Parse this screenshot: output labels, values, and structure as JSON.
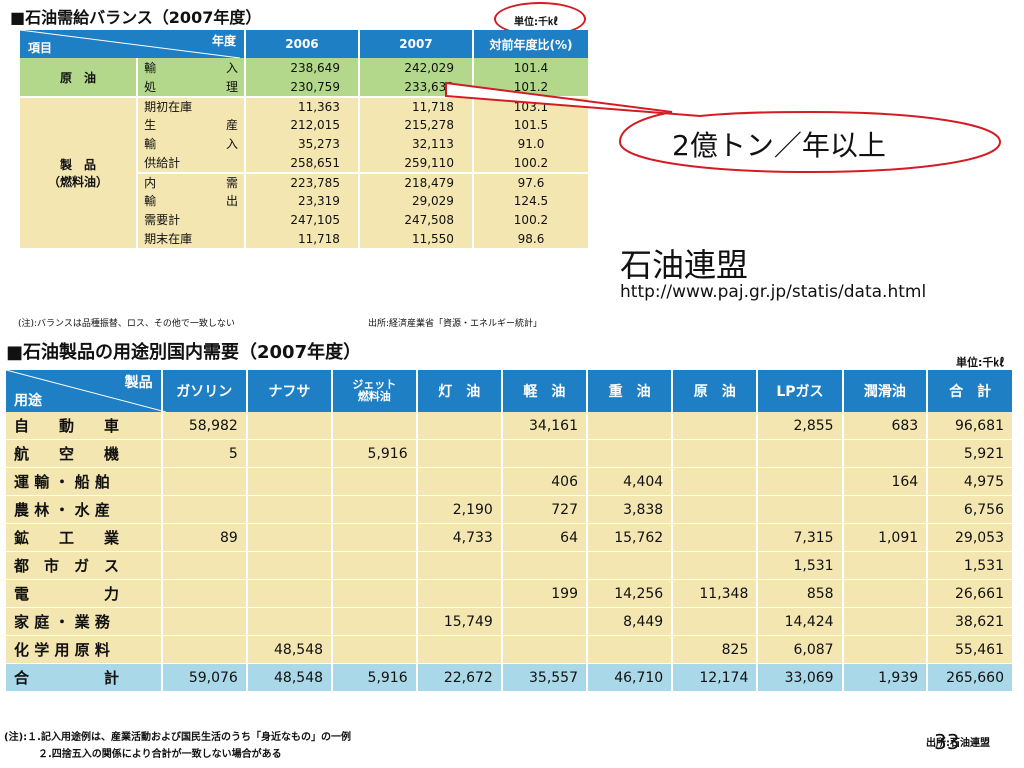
{
  "table1": {
    "title": "■石油需給バランス（2007年度）",
    "unit": "単位:千㎘",
    "corner_top": "年度",
    "corner_bottom": "項目",
    "col_2006": "2006",
    "col_2007": "2007",
    "col_ratio": "対前年度比(%)",
    "group_crude": "原　油",
    "group_products_1": "製　品",
    "group_products_2": "（燃料油）",
    "rows": [
      {
        "l1": "輸",
        "l2": "入",
        "v2006": "238,649",
        "v2007": "242,029",
        "ratio": "101.4"
      },
      {
        "l1": "処",
        "l2": "理",
        "v2006": "230,759",
        "v2007": "233,633",
        "ratio": "101.2"
      },
      {
        "l1": "期初在庫",
        "l2": "",
        "v2006": "11,363",
        "v2007": "11,718",
        "ratio": "103.1"
      },
      {
        "l1": "生",
        "l2": "産",
        "v2006": "212,015",
        "v2007": "215,278",
        "ratio": "101.5"
      },
      {
        "l1": "輸",
        "l2": "入",
        "v2006": "35,273",
        "v2007": "32,113",
        "ratio": "91.0"
      },
      {
        "l1": "供給計",
        "l2": "",
        "v2006": "258,651",
        "v2007": "259,110",
        "ratio": "100.2"
      },
      {
        "l1": "内",
        "l2": "需",
        "v2006": "223,785",
        "v2007": "218,479",
        "ratio": "97.6"
      },
      {
        "l1": "輸",
        "l2": "出",
        "v2006": "23,319",
        "v2007": "29,029",
        "ratio": "124.5"
      },
      {
        "l1": "需要計",
        "l2": "",
        "v2006": "247,105",
        "v2007": "247,508",
        "ratio": "100.2"
      },
      {
        "l1": "期末在庫",
        "l2": "",
        "v2006": "11,718",
        "v2007": "11,550",
        "ratio": "98.6"
      }
    ],
    "note": "(注):バランスは品種振替、ロス、その他で一致しない",
    "source": "出所:経済産業省「資源・エネルギー統計」"
  },
  "callout": {
    "text": "2億トン／年以上",
    "colors": {
      "stroke": "#d41c24"
    }
  },
  "org": {
    "name": "石油連盟",
    "url": "http://www.paj.gr.jp/statis/data.html"
  },
  "table2": {
    "title": "■石油製品の用途別国内需要（2007年度）",
    "unit": "単位:千㎘",
    "corner_top": "製品",
    "corner_bottom": "用途",
    "columns": [
      "ガソリン",
      "ナフサ",
      "ジェット燃料油",
      "灯　油",
      "軽　油",
      "重　油",
      "原　油",
      "LPガス",
      "潤滑油",
      "合　計"
    ],
    "jet_line1": "ジェット",
    "jet_line2": "燃料油",
    "rows": [
      {
        "label": "自　　動　　車",
        "values": [
          "58,982",
          "",
          "",
          "",
          "34,161",
          "",
          "",
          "2,855",
          "683",
          "96,681"
        ]
      },
      {
        "label": "航　　空　　機",
        "values": [
          "5",
          "",
          "5,916",
          "",
          "",
          "",
          "",
          "",
          "",
          "5,921"
        ]
      },
      {
        "label": "運 輸 ・ 船 舶",
        "values": [
          "",
          "",
          "",
          "",
          "406",
          "4,404",
          "",
          "",
          "164",
          "4,975"
        ]
      },
      {
        "label": "農 林 ・ 水 産",
        "values": [
          "",
          "",
          "",
          "2,190",
          "727",
          "3,838",
          "",
          "",
          "",
          "6,756"
        ]
      },
      {
        "label": "鉱　　工　　業",
        "values": [
          "89",
          "",
          "",
          "4,733",
          "64",
          "15,762",
          "",
          "7,315",
          "1,091",
          "29,053"
        ]
      },
      {
        "label": "都　市　ガ　ス",
        "values": [
          "",
          "",
          "",
          "",
          "",
          "",
          "",
          "1,531",
          "",
          "1,531"
        ]
      },
      {
        "label": "電　　　　　力",
        "values": [
          "",
          "",
          "",
          "",
          "199",
          "14,256",
          "11,348",
          "858",
          "",
          "26,661"
        ]
      },
      {
        "label": "家 庭 ・ 業 務",
        "values": [
          "",
          "",
          "",
          "15,749",
          "",
          "8,449",
          "",
          "14,424",
          "",
          "38,621"
        ]
      },
      {
        "label": "化 学 用 原 料",
        "values": [
          "",
          "48,548",
          "",
          "",
          "",
          "",
          "825",
          "6,087",
          "",
          "55,461"
        ]
      }
    ],
    "total": {
      "label": "合　　　　　計",
      "values": [
        "59,076",
        "48,548",
        "5,916",
        "22,672",
        "35,557",
        "46,710",
        "12,174",
        "33,069",
        "1,939",
        "265,660"
      ]
    },
    "note1": "(注):１.記入用途例は、産業活動および国民生活のうち「身近なもの」の一例",
    "note2": "２.四捨五入の関係により合計が一致しない場合がある",
    "source": "出所:石油連盟"
  },
  "page_number": "33",
  "colors": {
    "header_blue": "#1f7fc4",
    "green": "#b3d88c",
    "yellow": "#f3e6b0",
    "total_blue": "#a9d8e8",
    "accent_red": "#d41c24"
  }
}
